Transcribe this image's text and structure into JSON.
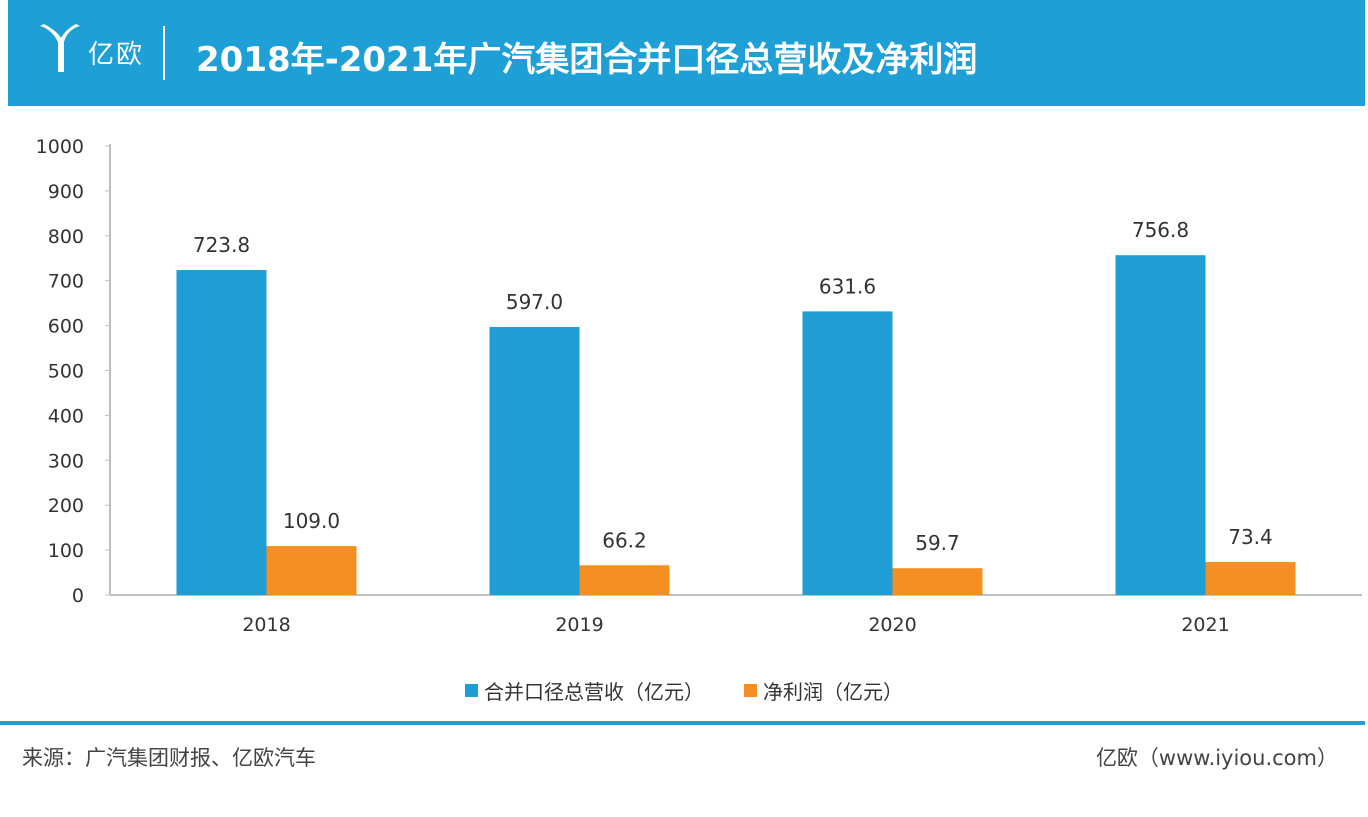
{
  "header": {
    "logo_text": "亿欧",
    "title": "2018年-2021年广汽集团合并口径总营收及净利润"
  },
  "chart_data": {
    "type": "bar",
    "categories": [
      "2018",
      "2019",
      "2020",
      "2021"
    ],
    "series": [
      {
        "name": "合并口径总营收（亿元）",
        "values": [
          723.8,
          597.0,
          631.6,
          756.8
        ],
        "labels": [
          "723.8",
          "597.0",
          "631.6",
          "756.8"
        ],
        "color": "#1f9ed5"
      },
      {
        "name": "净利润（亿元）",
        "values": [
          109.0,
          66.2,
          59.7,
          73.4
        ],
        "labels": [
          "109.0",
          "66.2",
          "59.7",
          "73.4"
        ],
        "color": "#f68f22"
      }
    ],
    "yticks": [
      "0",
      "100",
      "200",
      "300",
      "400",
      "500",
      "600",
      "700",
      "800",
      "900",
      "1000"
    ],
    "ylim": [
      0,
      1000
    ],
    "grid": false,
    "legend_position": "bottom-center"
  },
  "footer": {
    "source": "来源：广汽集团财报、亿欧汽车",
    "site": "亿欧（www.iyiou.com）"
  }
}
